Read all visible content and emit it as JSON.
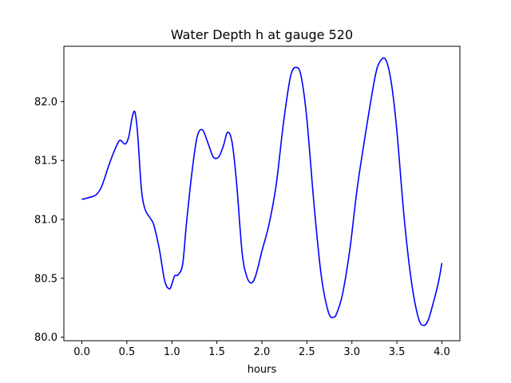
{
  "chart_data": {
    "type": "line",
    "title": "Water Depth h at gauge 520",
    "xlabel": "hours",
    "ylabel": "",
    "xlim": [
      -0.2,
      4.2
    ],
    "ylim": [
      79.97,
      82.47
    ],
    "x_ticks": [
      0.0,
      0.5,
      1.0,
      1.5,
      2.0,
      2.5,
      3.0,
      3.5,
      4.0
    ],
    "x_tick_labels": [
      "0.0",
      "0.5",
      "1.0",
      "1.5",
      "2.0",
      "2.5",
      "3.0",
      "3.5",
      "4.0"
    ],
    "y_ticks": [
      80.0,
      80.5,
      81.0,
      81.5,
      82.0
    ],
    "y_tick_labels": [
      "80.0",
      "80.5",
      "81.0",
      "81.5",
      "82.0"
    ],
    "grid": false,
    "legend": null,
    "series": [
      {
        "color": "#0000ff",
        "x": [
          0.0,
          0.1,
          0.16,
          0.22,
          0.3,
          0.36,
          0.42,
          0.48,
          0.52,
          0.56,
          0.59,
          0.62,
          0.66,
          0.7,
          0.76,
          0.8,
          0.86,
          0.92,
          0.97,
          1.0,
          1.03,
          1.07,
          1.12,
          1.16,
          1.22,
          1.28,
          1.34,
          1.4,
          1.46,
          1.52,
          1.57,
          1.62,
          1.67,
          1.72,
          1.78,
          1.83,
          1.88,
          1.93,
          2.0,
          2.08,
          2.16,
          2.24,
          2.32,
          2.39,
          2.44,
          2.5,
          2.58,
          2.66,
          2.74,
          2.8,
          2.84,
          2.9,
          2.98,
          3.06,
          3.16,
          3.26,
          3.32,
          3.38,
          3.44,
          3.5,
          3.58,
          3.66,
          3.74,
          3.8,
          3.85,
          3.9,
          3.96,
          4.0
        ],
        "y": [
          81.17,
          81.19,
          81.21,
          81.28,
          81.46,
          81.58,
          81.67,
          81.64,
          81.7,
          81.87,
          81.91,
          81.72,
          81.27,
          81.09,
          81.01,
          80.95,
          80.75,
          80.48,
          80.41,
          80.45,
          80.52,
          80.53,
          80.62,
          80.95,
          81.38,
          81.7,
          81.76,
          81.65,
          81.53,
          81.53,
          81.62,
          81.74,
          81.65,
          81.3,
          80.72,
          80.52,
          80.46,
          80.52,
          80.73,
          80.96,
          81.3,
          81.82,
          82.22,
          82.29,
          82.2,
          81.85,
          81.12,
          80.52,
          80.21,
          80.17,
          80.22,
          80.38,
          80.76,
          81.27,
          81.77,
          82.22,
          82.35,
          82.35,
          82.15,
          81.75,
          81.02,
          80.48,
          80.16,
          80.1,
          80.15,
          80.28,
          80.46,
          80.63
        ]
      }
    ]
  }
}
